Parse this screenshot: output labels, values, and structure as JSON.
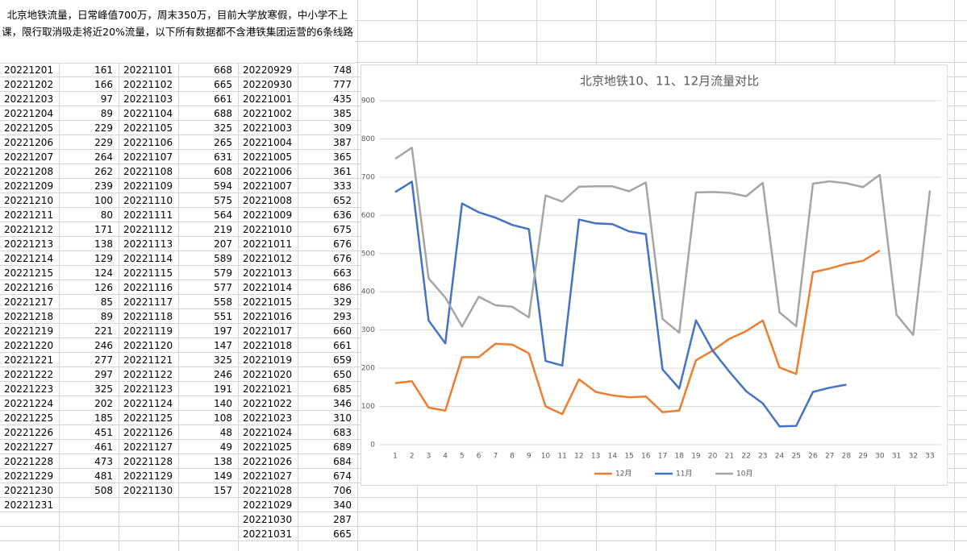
{
  "note": "北京地铁流量，日常峰值700万，周末350万，目前大学放寒假，中小学不上课，限行取消吸走将近20%流量，以下所有数据都不含港铁集团运营的6条线路",
  "table": {
    "rows": [
      [
        "20221201",
        161,
        "20221101",
        668,
        "20220929",
        748
      ],
      [
        "20221202",
        166,
        "20221102",
        665,
        "20220930",
        777
      ],
      [
        "20221203",
        97,
        "20221103",
        661,
        "20221001",
        435
      ],
      [
        "20221204",
        89,
        "20221104",
        688,
        "20221002",
        385
      ],
      [
        "20221205",
        229,
        "20221105",
        325,
        "20221003",
        309
      ],
      [
        "20221206",
        229,
        "20221106",
        265,
        "20221004",
        387
      ],
      [
        "20221207",
        264,
        "20221107",
        631,
        "20221005",
        365
      ],
      [
        "20221208",
        262,
        "20221108",
        608,
        "20221006",
        361
      ],
      [
        "20221209",
        239,
        "20221109",
        594,
        "20221007",
        333
      ],
      [
        "20221210",
        100,
        "20221110",
        575,
        "20221008",
        652
      ],
      [
        "20221211",
        80,
        "20221111",
        564,
        "20221009",
        636
      ],
      [
        "20221212",
        171,
        "20221112",
        219,
        "20221010",
        675
      ],
      [
        "20221213",
        138,
        "20221113",
        207,
        "20221011",
        676
      ],
      [
        "20221214",
        129,
        "20221114",
        589,
        "20221012",
        676
      ],
      [
        "20221215",
        124,
        "20221115",
        579,
        "20221013",
        663
      ],
      [
        "20221216",
        126,
        "20221116",
        577,
        "20221014",
        686
      ],
      [
        "20221217",
        85,
        "20221117",
        558,
        "20221015",
        329
      ],
      [
        "20221218",
        89,
        "20221118",
        551,
        "20221016",
        293
      ],
      [
        "20221219",
        221,
        "20221119",
        197,
        "20221017",
        660
      ],
      [
        "20221220",
        246,
        "20221120",
        147,
        "20221018",
        661
      ],
      [
        "20221221",
        277,
        "20221121",
        325,
        "20221019",
        659
      ],
      [
        "20221222",
        297,
        "20221122",
        246,
        "20221020",
        650
      ],
      [
        "20221223",
        325,
        "20221123",
        191,
        "20221021",
        685
      ],
      [
        "20221224",
        202,
        "20221124",
        140,
        "20221022",
        346
      ],
      [
        "20221225",
        185,
        "20221125",
        108,
        "20221023",
        310
      ],
      [
        "20221226",
        451,
        "20221126",
        48,
        "20221024",
        683
      ],
      [
        "20221227",
        461,
        "20221127",
        49,
        "20221025",
        689
      ],
      [
        "20221228",
        473,
        "20221128",
        138,
        "20221026",
        684
      ],
      [
        "20221229",
        481,
        "20221129",
        149,
        "20221027",
        674
      ],
      [
        "20221230",
        508,
        "20221130",
        157,
        "20221028",
        706
      ],
      [
        "20221231",
        null,
        null,
        null,
        "20221029",
        340
      ],
      [
        null,
        null,
        null,
        null,
        "20221030",
        287
      ],
      [
        null,
        null,
        null,
        null,
        "20221031",
        665
      ]
    ]
  },
  "chart_data": {
    "type": "line",
    "title": "北京地铁10、11、12月流量对比",
    "categories": [
      1,
      2,
      3,
      4,
      5,
      6,
      7,
      8,
      9,
      10,
      11,
      12,
      13,
      14,
      15,
      16,
      17,
      18,
      19,
      20,
      21,
      22,
      23,
      24,
      25,
      26,
      27,
      28,
      29,
      30,
      31,
      32,
      33
    ],
    "ylim": [
      0,
      900
    ],
    "yticks": [
      0,
      100,
      200,
      300,
      400,
      500,
      600,
      700,
      800,
      900
    ],
    "grid": true,
    "series": [
      {
        "name": "12月",
        "color": "#ed7d31",
        "values": [
          161,
          166,
          97,
          89,
          229,
          229,
          264,
          262,
          239,
          100,
          80,
          171,
          138,
          129,
          124,
          126,
          85,
          89,
          221,
          246,
          277,
          297,
          325,
          202,
          185,
          451,
          461,
          473,
          481,
          508,
          null,
          null,
          null
        ]
      },
      {
        "name": "11月",
        "color": "#4472c4",
        "values": [
          661,
          688,
          325,
          265,
          631,
          608,
          594,
          575,
          564,
          219,
          207,
          589,
          579,
          577,
          558,
          551,
          197,
          147,
          325,
          246,
          191,
          140,
          108,
          48,
          49,
          138,
          149,
          157,
          null,
          null,
          null,
          null,
          null
        ]
      },
      {
        "name": "10月",
        "color": "#a5a5a5",
        "values": [
          748,
          777,
          435,
          385,
          309,
          387,
          365,
          361,
          333,
          652,
          636,
          675,
          676,
          676,
          663,
          686,
          329,
          293,
          660,
          661,
          659,
          650,
          685,
          346,
          310,
          683,
          689,
          684,
          674,
          706,
          340,
          287,
          665
        ]
      }
    ]
  }
}
